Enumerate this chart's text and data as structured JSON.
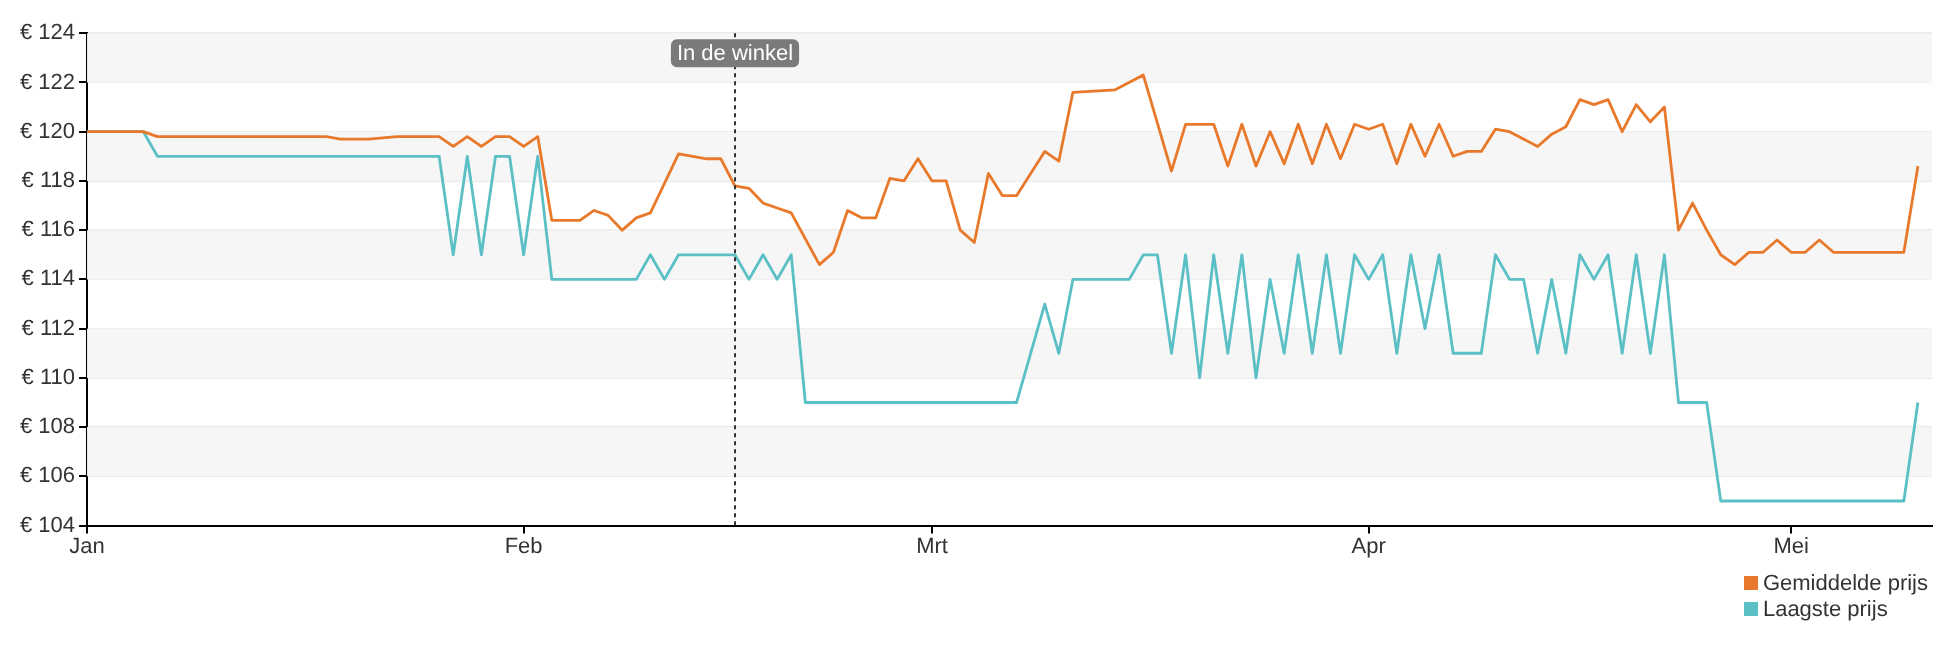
{
  "chart_data": {
    "type": "line",
    "xlim": [
      "--01-01",
      "--05-11"
    ],
    "xticks": [
      {
        "value": "--01-01",
        "label": "Jan"
      },
      {
        "value": "--02-01",
        "label": "Feb"
      },
      {
        "value": "--03-01",
        "label": "Mrt"
      },
      {
        "value": "--04-01",
        "label": "Apr"
      },
      {
        "value": "--05-01",
        "label": "Mei"
      }
    ],
    "ylim": [
      104,
      124
    ],
    "yticks": [
      {
        "value": 104,
        "label": "€ 104"
      },
      {
        "value": 106,
        "label": "€ 106"
      },
      {
        "value": 108,
        "label": "€ 108"
      },
      {
        "value": 110,
        "label": "€ 110"
      },
      {
        "value": 112,
        "label": "€ 112"
      },
      {
        "value": 114,
        "label": "€ 114"
      },
      {
        "value": 116,
        "label": "€ 116"
      },
      {
        "value": 118,
        "label": "€ 118"
      },
      {
        "value": 120,
        "label": "€ 120"
      },
      {
        "value": 122,
        "label": "€ 122"
      },
      {
        "value": 124,
        "label": "€ 124"
      }
    ],
    "grid": "y",
    "legend": "bottom right",
    "marker": "none",
    "line_style": "solid",
    "ref_lines": [
      {
        "axis": "x",
        "value": "--02-16",
        "label": "In de winkel",
        "color": "#333333",
        "line_style": "dotted"
      }
    ],
    "series": [
      {
        "name": "Gemiddelde prijs",
        "color": "#e8792b",
        "x": [
          "--01-01",
          "--01-05",
          "--01-06",
          "--01-18",
          "--01-19",
          "--01-21",
          "--01-23",
          "--01-26",
          "--01-27",
          "--01-28",
          "--01-29",
          "--01-30",
          "--01-31",
          "--02-01",
          "--02-02",
          "--02-03",
          "--02-05",
          "--02-06",
          "--02-07",
          "--02-08",
          "--02-09",
          "--02-10",
          "--02-12",
          "--02-13",
          "--02-14",
          "--02-15",
          "--02-16",
          "--02-17",
          "--02-18",
          "--02-19",
          "--02-20",
          "--02-22",
          "--02-23",
          "--02-24",
          "--02-25",
          "--02-26",
          "--02-27",
          "--02-28",
          "--02-29",
          "--03-01",
          "--03-02",
          "--03-03",
          "--03-04",
          "--03-05",
          "--03-06",
          "--03-07",
          "--03-09",
          "--03-10",
          "--03-11",
          "--03-14",
          "--03-16",
          "--03-18",
          "--03-19",
          "--03-21",
          "--03-22",
          "--03-23",
          "--03-24",
          "--03-25",
          "--03-26",
          "--03-27",
          "--03-28",
          "--03-29",
          "--03-30",
          "--03-31",
          "--04-01",
          "--04-02",
          "--04-03",
          "--04-04",
          "--04-05",
          "--04-06",
          "--04-07",
          "--04-08",
          "--04-09",
          "--04-10",
          "--04-11",
          "--04-13",
          "--04-14",
          "--04-15",
          "--04-16",
          "--04-17",
          "--04-18",
          "--04-19",
          "--04-20",
          "--04-21",
          "--04-22",
          "--04-23",
          "--04-24",
          "--04-25",
          "--04-26",
          "--04-27",
          "--04-28",
          "--04-29",
          "--04-30",
          "--05-01",
          "--05-02",
          "--05-03",
          "--05-04",
          "--05-09",
          "--05-10"
        ],
        "values": [
          120,
          120,
          119.8,
          119.8,
          119.7,
          119.7,
          119.8,
          119.8,
          119.4,
          119.8,
          119.4,
          119.8,
          119.8,
          119.4,
          119.8,
          116.4,
          116.4,
          116.8,
          116.6,
          116.0,
          116.5,
          116.7,
          119.1,
          119.0,
          118.9,
          118.9,
          117.8,
          117.7,
          117.1,
          116.9,
          116.7,
          114.6,
          115.1,
          116.8,
          116.5,
          116.5,
          118.1,
          118.0,
          118.9,
          118.0,
          118.0,
          116.0,
          115.5,
          118.3,
          117.4,
          117.4,
          119.2,
          118.8,
          121.6,
          121.7,
          122.3,
          118.4,
          120.3,
          120.3,
          118.6,
          120.3,
          118.6,
          120.0,
          118.7,
          120.3,
          118.7,
          120.3,
          118.9,
          120.3,
          120.1,
          120.3,
          118.7,
          120.3,
          119.0,
          120.3,
          119.0,
          119.2,
          119.2,
          120.1,
          120.0,
          119.4,
          119.9,
          120.2,
          121.3,
          121.1,
          121.3,
          120.0,
          121.1,
          120.4,
          121.0,
          116.0,
          117.1,
          116.0,
          115.0,
          114.6,
          115.1,
          115.1,
          115.6,
          115.1,
          115.1,
          115.6,
          115.1,
          115.1,
          118.6
        ]
      },
      {
        "name": "Laagste prijs",
        "color": "#5bbfc6",
        "x": [
          "--01-01",
          "--01-05",
          "--01-06",
          "--01-26",
          "--01-27",
          "--01-28",
          "--01-29",
          "--01-30",
          "--01-31",
          "--02-01",
          "--02-02",
          "--02-03",
          "--02-09",
          "--02-10",
          "--02-11",
          "--02-12",
          "--02-16",
          "--02-17",
          "--02-18",
          "--02-19",
          "--02-20",
          "--02-21",
          "--03-07",
          "--03-09",
          "--03-10",
          "--03-11",
          "--03-15",
          "--03-16",
          "--03-17",
          "--03-18",
          "--03-19",
          "--03-20",
          "--03-21",
          "--03-22",
          "--03-23",
          "--03-24",
          "--03-25",
          "--03-26",
          "--03-27",
          "--03-28",
          "--03-29",
          "--03-30",
          "--03-31",
          "--04-01",
          "--04-02",
          "--04-03",
          "--04-04",
          "--04-05",
          "--04-06",
          "--04-07",
          "--04-09",
          "--04-10",
          "--04-11",
          "--04-12",
          "--04-13",
          "--04-14",
          "--04-15",
          "--04-16",
          "--04-17",
          "--04-18",
          "--04-19",
          "--04-20",
          "--04-21",
          "--04-22",
          "--04-23",
          "--04-25",
          "--04-26",
          "--05-09",
          "--05-10"
        ],
        "values": [
          120,
          120,
          119,
          119,
          115,
          119,
          115,
          119,
          119,
          115,
          119,
          114,
          114,
          115,
          114,
          115,
          115,
          114,
          115,
          114,
          115,
          109,
          109,
          113,
          111,
          114,
          114,
          115,
          115,
          111,
          115,
          110,
          115,
          111,
          115,
          110,
          114,
          111,
          115,
          111,
          115,
          111,
          115,
          114,
          115,
          111,
          115,
          112,
          115,
          111,
          111,
          115,
          114,
          114,
          111,
          114,
          111,
          115,
          114,
          115,
          111,
          115,
          111,
          115,
          109,
          109,
          105,
          105,
          109
        ]
      }
    ]
  }
}
